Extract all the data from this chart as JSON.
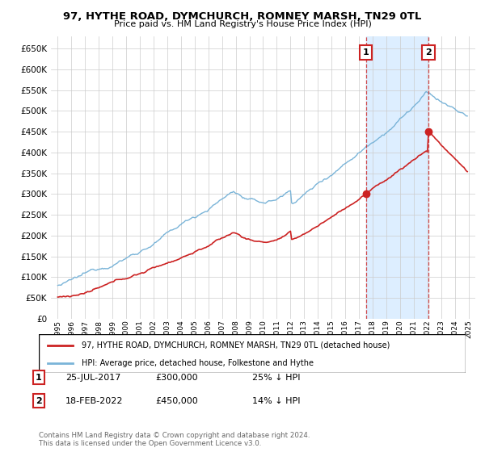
{
  "title": "97, HYTHE ROAD, DYMCHURCH, ROMNEY MARSH, TN29 0TL",
  "subtitle": "Price paid vs. HM Land Registry's House Price Index (HPI)",
  "legend_line1": "97, HYTHE ROAD, DYMCHURCH, ROMNEY MARSH, TN29 0TL (detached house)",
  "legend_line2": "HPI: Average price, detached house, Folkestone and Hythe",
  "annotation1_label": "1",
  "annotation1_date": "25-JUL-2017",
  "annotation1_price": "£300,000",
  "annotation1_hpi": "25% ↓ HPI",
  "annotation2_label": "2",
  "annotation2_date": "18-FEB-2022",
  "annotation2_price": "£450,000",
  "annotation2_hpi": "14% ↓ HPI",
  "footer": "Contains HM Land Registry data © Crown copyright and database right 2024.\nThis data is licensed under the Open Government Licence v3.0.",
  "hpi_color": "#7ab4d8",
  "price_color": "#cc2222",
  "annotation_color": "#cc2222",
  "shade_color": "#ddeeff",
  "background_color": "#ffffff",
  "grid_color": "#cccccc",
  "ylim": [
    0,
    680000
  ],
  "yticks": [
    0,
    50000,
    100000,
    150000,
    200000,
    250000,
    300000,
    350000,
    400000,
    450000,
    500000,
    550000,
    600000,
    650000
  ],
  "start_year": 1995,
  "end_year": 2025
}
